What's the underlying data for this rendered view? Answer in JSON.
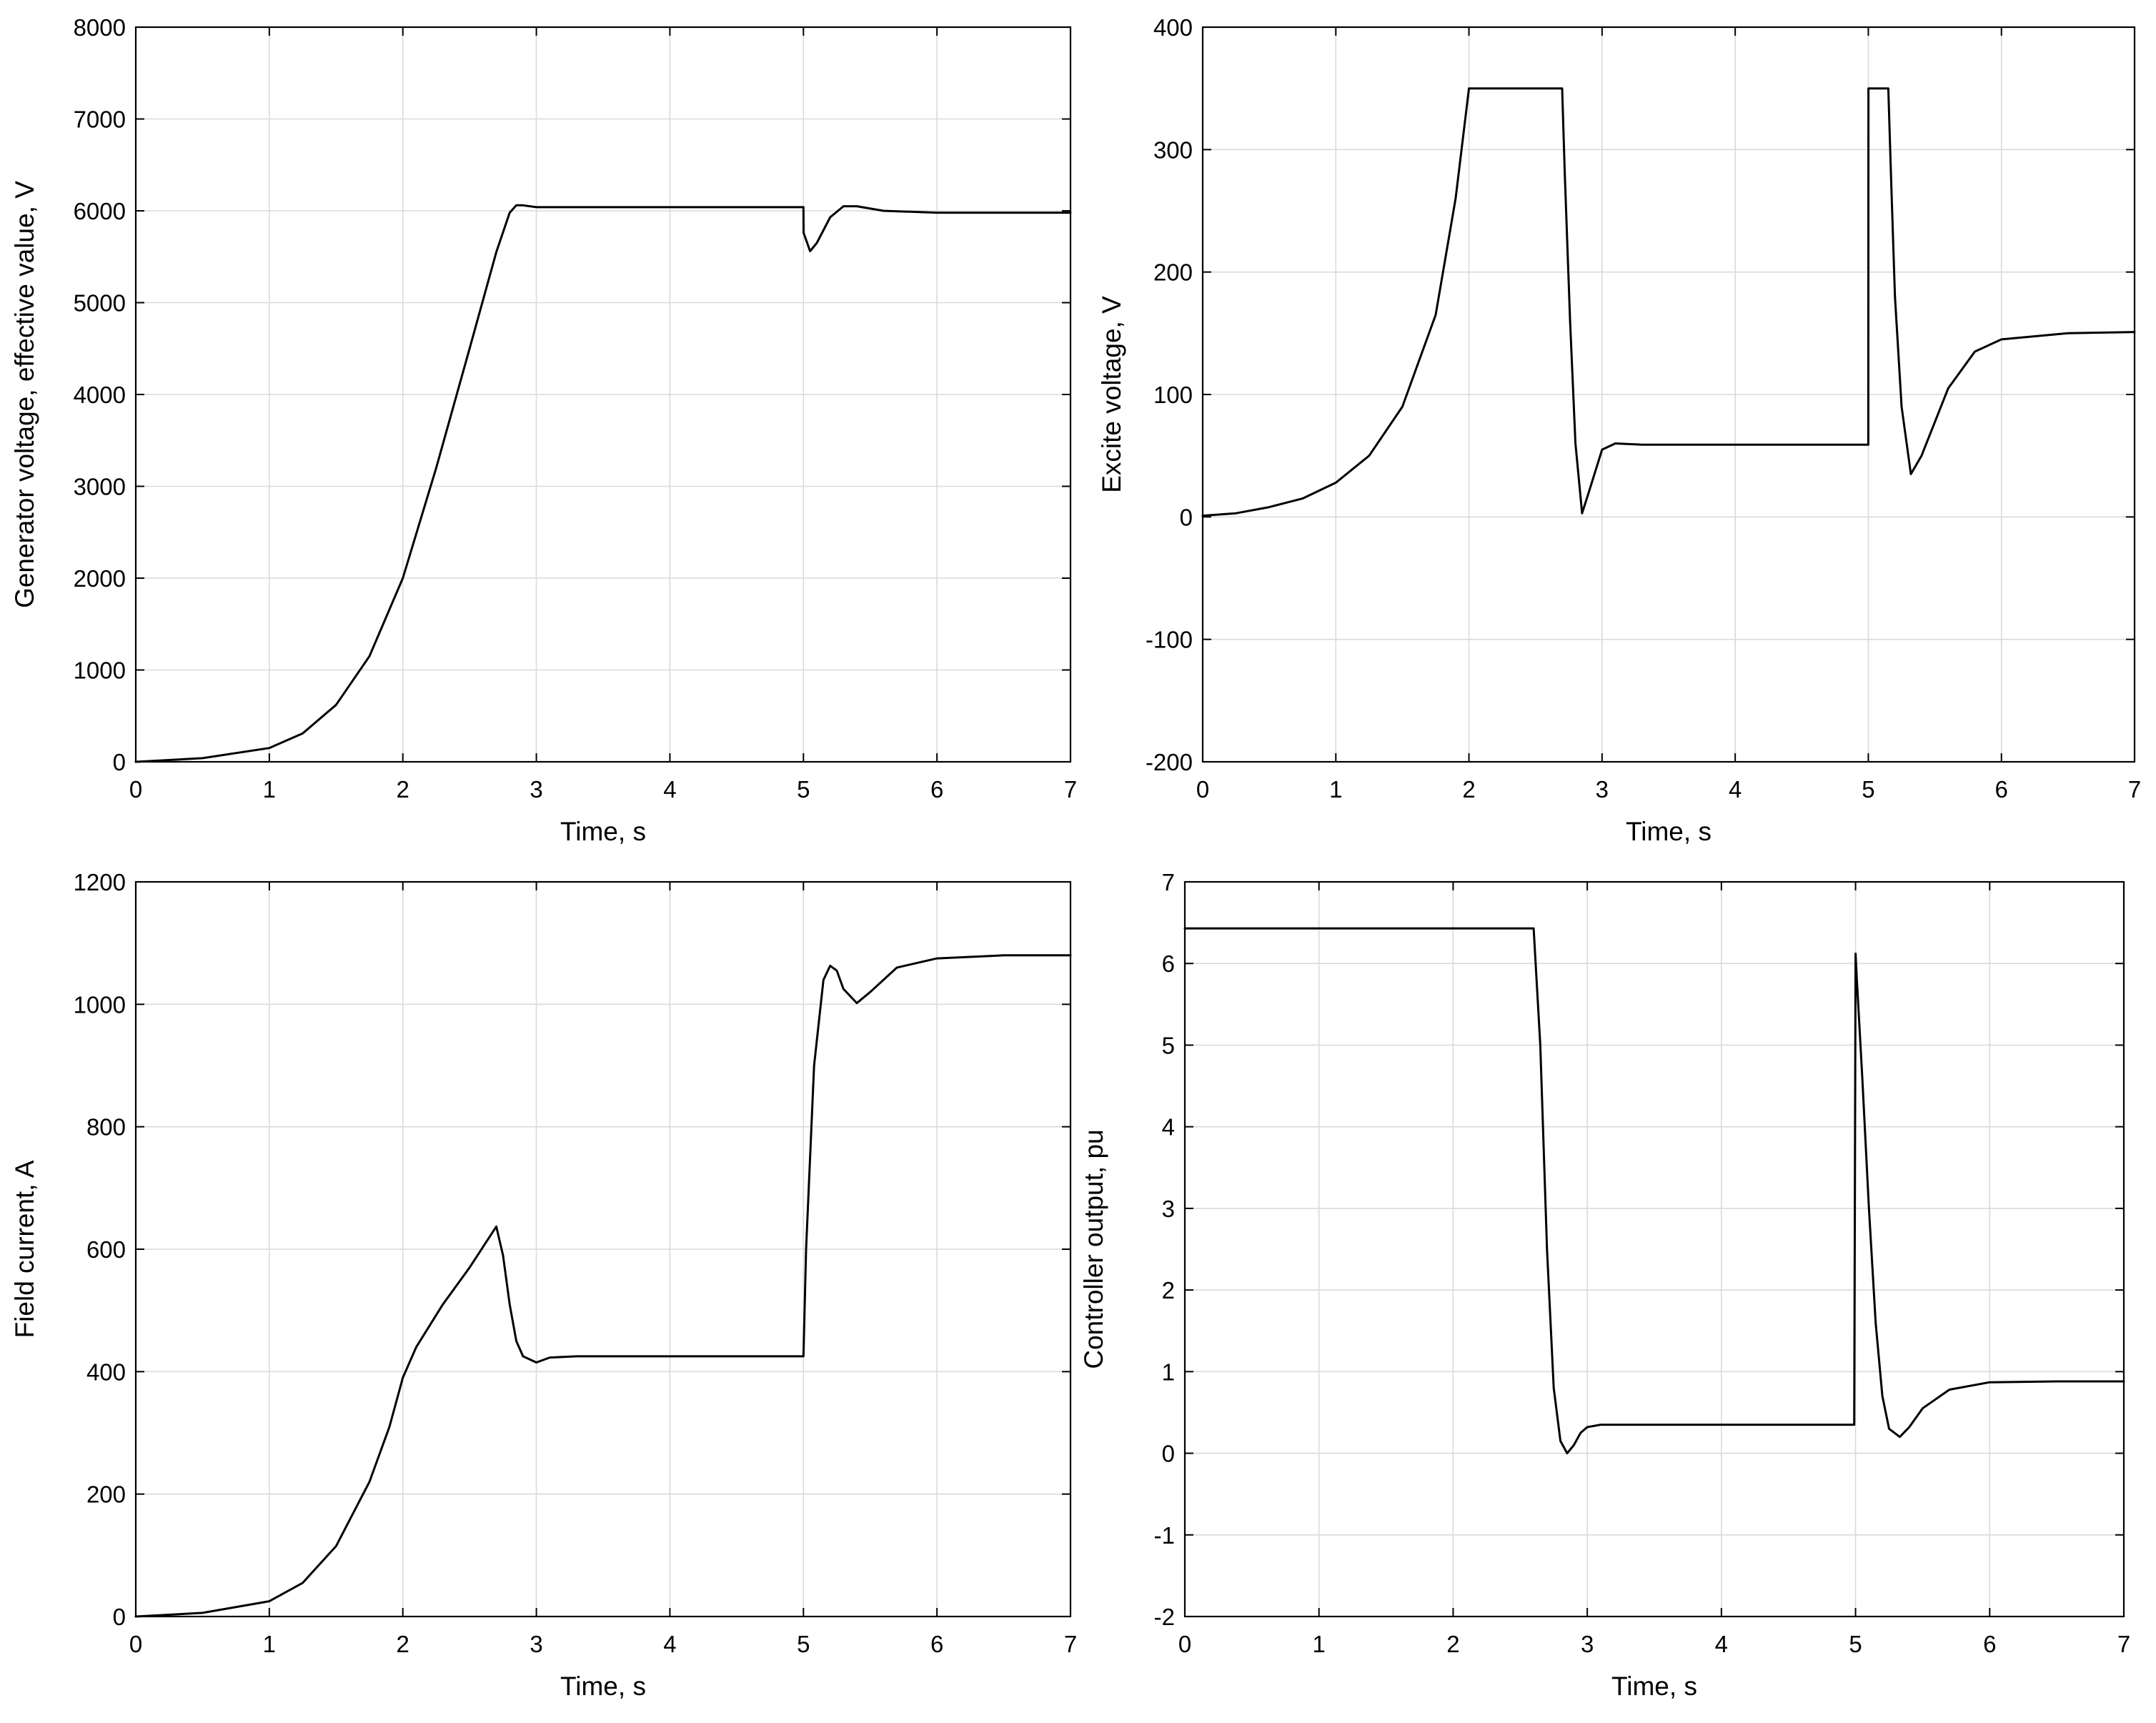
{
  "colors": {
    "line": "#000000",
    "grid": "#dadada",
    "axes": "#000000",
    "background": "#ffffff"
  },
  "chart_data": [
    {
      "type": "line",
      "xlabel": "Time, s",
      "ylabel": "Generator voltage, effective value, V",
      "xlim": [
        0,
        7
      ],
      "ylim": [
        0,
        8000
      ],
      "xticks": [
        "0",
        "1",
        "2",
        "3",
        "4",
        "5",
        "6",
        "7"
      ],
      "yticks": [
        "0",
        "1000",
        "2000",
        "3000",
        "4000",
        "5000",
        "6000",
        "7000",
        "8000"
      ],
      "grid": true,
      "series": [
        {
          "x": [
            0,
            0.5,
            1.0,
            1.25,
            1.5,
            1.75,
            2.0,
            2.25,
            2.5,
            2.7,
            2.8,
            2.85,
            2.9,
            3.0,
            3.2,
            4.0,
            5.0,
            5.001,
            5.05,
            5.1,
            5.2,
            5.3,
            5.4,
            5.6,
            6.0,
            7.0
          ],
          "y": [
            0,
            40,
            150,
            310,
            620,
            1150,
            2000,
            3200,
            4500,
            5550,
            5980,
            6060,
            6060,
            6040,
            6040,
            6040,
            6040,
            5760,
            5560,
            5650,
            5930,
            6050,
            6050,
            6000,
            5980,
            5980
          ]
        }
      ]
    },
    {
      "type": "line",
      "xlabel": "Time, s",
      "ylabel": "Excite voltage, V",
      "xlim": [
        0,
        7
      ],
      "ylim": [
        -200,
        400
      ],
      "xticks": [
        "0",
        "1",
        "2",
        "3",
        "4",
        "5",
        "6",
        "7"
      ],
      "yticks": [
        "-200",
        "-100",
        "0",
        "100",
        "200",
        "300",
        "400"
      ],
      "grid": true,
      "series": [
        {
          "x": [
            0,
            0.25,
            0.5,
            0.75,
            1.0,
            1.25,
            1.5,
            1.75,
            1.9,
            2.0,
            2.7,
            2.72,
            2.76,
            2.8,
            2.85,
            2.9,
            3.0,
            3.1,
            3.3,
            4.0,
            5.0,
            5.001,
            5.15,
            5.17,
            5.2,
            5.25,
            5.32,
            5.4,
            5.6,
            5.8,
            6.0,
            6.5,
            7.0
          ],
          "y": [
            1,
            3,
            8,
            15,
            28,
            50,
            90,
            165,
            260,
            350,
            350,
            280,
            160,
            60,
            3,
            20,
            55,
            60,
            59,
            59,
            59,
            350,
            350,
            280,
            180,
            90,
            35,
            50,
            105,
            135,
            145,
            150,
            151
          ]
        }
      ]
    },
    {
      "type": "line",
      "xlabel": "Time, s",
      "ylabel": "Field current, A",
      "xlim": [
        0,
        7
      ],
      "ylim": [
        0,
        1200
      ],
      "xticks": [
        "0",
        "1",
        "2",
        "3",
        "4",
        "5",
        "6",
        "7"
      ],
      "yticks": [
        "0",
        "200",
        "400",
        "600",
        "800",
        "1000",
        "1200"
      ],
      "grid": true,
      "series": [
        {
          "x": [
            0,
            0.5,
            1.0,
            1.25,
            1.5,
            1.75,
            1.9,
            2.0,
            2.1,
            2.3,
            2.5,
            2.7,
            2.75,
            2.8,
            2.85,
            2.9,
            3.0,
            3.1,
            3.3,
            4.0,
            5.0,
            5.02,
            5.08,
            5.15,
            5.2,
            5.25,
            5.3,
            5.4,
            5.5,
            5.7,
            6.0,
            6.5,
            7.0
          ],
          "y": [
            0,
            6,
            25,
            55,
            115,
            220,
            310,
            390,
            440,
            510,
            570,
            637,
            590,
            510,
            450,
            425,
            415,
            423,
            425,
            425,
            425,
            600,
            900,
            1040,
            1063,
            1055,
            1025,
            1002,
            1020,
            1060,
            1075,
            1080,
            1080
          ]
        }
      ]
    },
    {
      "type": "line",
      "xlabel": "Time, s",
      "ylabel": "Controller output, pu",
      "xlim": [
        0,
        7
      ],
      "ylim": [
        -2,
        7
      ],
      "xticks": [
        "0",
        "1",
        "2",
        "3",
        "4",
        "5",
        "6",
        "7"
      ],
      "yticks": [
        "-2",
        "-1",
        "0",
        "1",
        "2",
        "3",
        "4",
        "5",
        "6",
        "7"
      ],
      "grid": true,
      "series": [
        {
          "x": [
            0,
            2.6,
            2.65,
            2.7,
            2.75,
            2.8,
            2.85,
            2.9,
            2.95,
            3.0,
            3.1,
            3.3,
            4.0,
            4.99,
            5.0,
            5.01,
            5.05,
            5.1,
            5.15,
            5.2,
            5.25,
            5.33,
            5.4,
            5.5,
            5.7,
            6.0,
            6.5,
            7.0
          ],
          "y": [
            6.43,
            6.43,
            5.0,
            2.5,
            0.8,
            0.15,
            0.0,
            0.1,
            0.25,
            0.32,
            0.35,
            0.35,
            0.35,
            0.35,
            6.12,
            5.8,
            4.6,
            3.0,
            1.6,
            0.7,
            0.3,
            0.2,
            0.32,
            0.55,
            0.78,
            0.87,
            0.88,
            0.88
          ]
        }
      ]
    }
  ]
}
